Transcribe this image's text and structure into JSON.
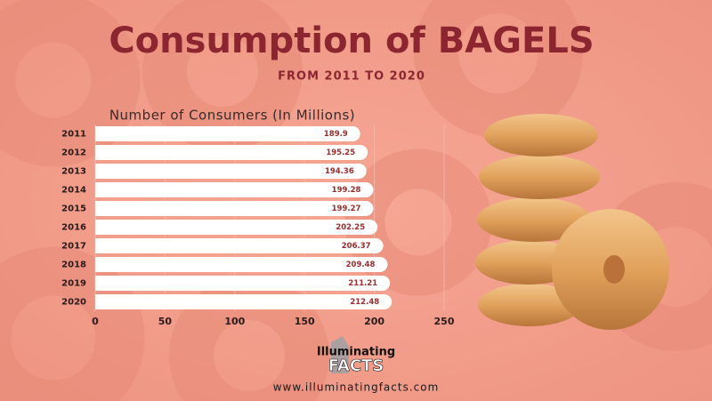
{
  "chart_data": {
    "type": "bar",
    "orientation": "horizontal",
    "title": "Consumption of BAGELS",
    "subtitle": "FROM 2011 TO 2020",
    "x_label": "Number of Consumers (In Millions)",
    "categories": [
      "2011",
      "2012",
      "2013",
      "2014",
      "2015",
      "2016",
      "2017",
      "2018",
      "2019",
      "2020"
    ],
    "values": [
      189.9,
      195.25,
      194.36,
      199.28,
      199.27,
      202.25,
      206.37,
      209.48,
      211.21,
      212.48
    ],
    "color": "#ffffff",
    "label_color": "#9b2c2c",
    "xlim": [
      0,
      250
    ],
    "xticks": [
      0,
      50,
      100,
      150,
      200,
      250
    ],
    "grid": true
  },
  "branding": {
    "name": "Illuminating",
    "name_accent": "FACTS",
    "url": "www.illuminatingfacts.com"
  }
}
